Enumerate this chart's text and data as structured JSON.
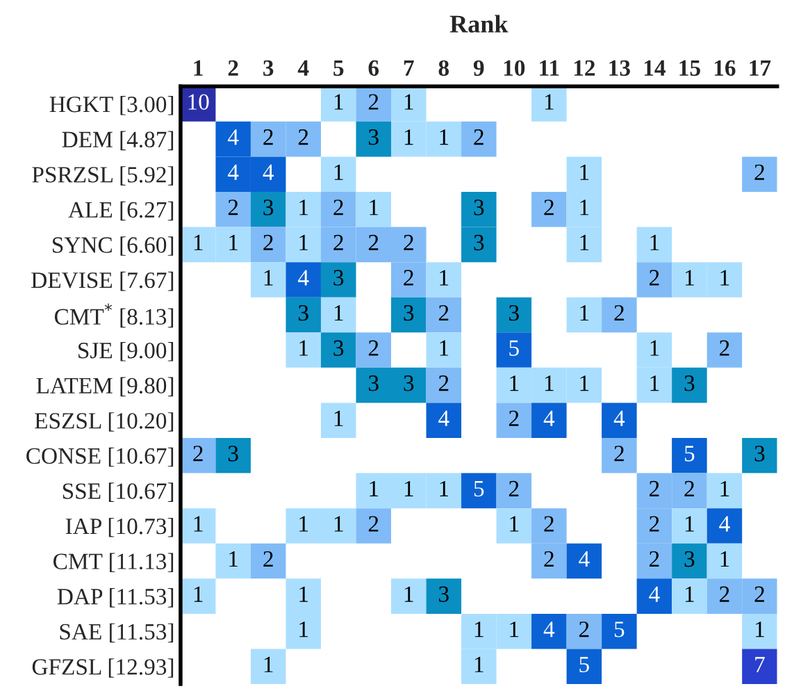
{
  "chart_data": {
    "type": "heatmap",
    "title": "Rank",
    "data_labels": true,
    "categories": [
      "1",
      "2",
      "3",
      "4",
      "5",
      "6",
      "7",
      "8",
      "9",
      "10",
      "11",
      "12",
      "13",
      "14",
      "15",
      "16",
      "17"
    ],
    "y_categories": [
      "HGKT [3.00]",
      "DEM [4.87]",
      "PSRZSL [5.92]",
      "ALE [6.27]",
      "SYNC [6.60]",
      "DEVISE [7.67]",
      "CMT$^{*}$ [8.13]",
      "SJE [9.00]",
      "LATEM [9.80]",
      "ESZSL [10.20]",
      "CONSE [10.67]",
      "SSE [10.67]",
      "IAP [10.73]",
      "CMT [11.13]",
      "DAP [11.53]",
      "SAE [11.53]",
      "GFZSL [12.93]"
    ],
    "cells": [
      [
        10,
        null,
        null,
        null,
        1,
        2,
        1,
        null,
        null,
        null,
        1,
        null,
        null,
        null,
        null,
        null,
        null
      ],
      [
        null,
        4,
        2,
        2,
        null,
        3,
        1,
        1,
        2,
        null,
        null,
        null,
        null,
        null,
        null,
        null,
        null
      ],
      [
        null,
        4,
        4,
        null,
        1,
        null,
        null,
        null,
        null,
        null,
        null,
        1,
        null,
        null,
        null,
        null,
        2
      ],
      [
        null,
        2,
        3,
        1,
        2,
        1,
        null,
        null,
        3,
        null,
        2,
        1,
        null,
        null,
        null,
        null,
        null
      ],
      [
        1,
        1,
        2,
        1,
        2,
        2,
        2,
        null,
        3,
        null,
        null,
        1,
        null,
        1,
        null,
        null,
        null
      ],
      [
        null,
        null,
        1,
        4,
        3,
        null,
        2,
        1,
        null,
        null,
        null,
        null,
        null,
        2,
        1,
        1,
        null
      ],
      [
        null,
        null,
        null,
        3,
        1,
        null,
        3,
        2,
        null,
        3,
        null,
        1,
        2,
        null,
        null,
        null,
        null
      ],
      [
        null,
        null,
        null,
        1,
        3,
        2,
        null,
        1,
        null,
        5,
        null,
        null,
        null,
        1,
        null,
        2,
        null
      ],
      [
        null,
        null,
        null,
        null,
        null,
        3,
        3,
        2,
        null,
        1,
        1,
        1,
        null,
        1,
        3,
        null,
        null
      ],
      [
        null,
        null,
        null,
        null,
        1,
        null,
        null,
        4,
        null,
        2,
        4,
        null,
        4,
        null,
        null,
        null,
        null
      ],
      [
        2,
        3,
        null,
        null,
        null,
        null,
        null,
        null,
        null,
        null,
        null,
        null,
        2,
        null,
        5,
        null,
        3
      ],
      [
        null,
        null,
        null,
        null,
        null,
        1,
        1,
        1,
        5,
        2,
        null,
        null,
        null,
        2,
        2,
        1,
        null
      ],
      [
        1,
        null,
        null,
        1,
        1,
        2,
        null,
        null,
        null,
        1,
        2,
        null,
        null,
        2,
        1,
        4,
        null
      ],
      [
        null,
        1,
        2,
        null,
        null,
        null,
        null,
        null,
        null,
        null,
        2,
        4,
        null,
        2,
        3,
        1,
        null
      ],
      [
        1,
        null,
        null,
        1,
        null,
        null,
        1,
        3,
        null,
        null,
        null,
        null,
        null,
        4,
        1,
        2,
        2
      ],
      [
        null,
        null,
        null,
        1,
        null,
        null,
        null,
        null,
        1,
        1,
        4,
        2,
        5,
        null,
        null,
        null,
        1
      ],
      [
        null,
        null,
        1,
        null,
        null,
        null,
        null,
        null,
        1,
        null,
        null,
        5,
        null,
        null,
        null,
        null,
        7
      ]
    ]
  }
}
